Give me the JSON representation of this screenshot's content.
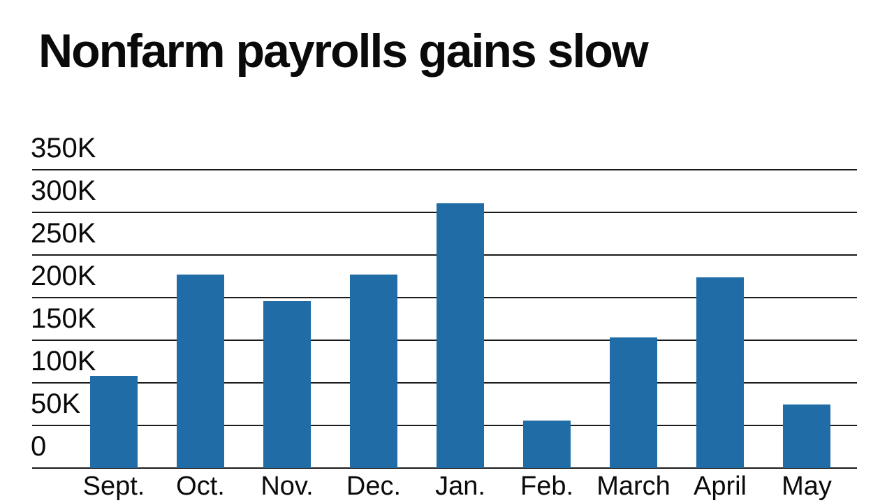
{
  "chart_data": {
    "type": "bar",
    "title": "Nonfarm payrolls gains slow",
    "categories": [
      "Sept.",
      "Oct.",
      "Nov.",
      "Dec.",
      "Jan.",
      "Feb.",
      "March",
      "April",
      "May"
    ],
    "values": [
      108,
      227,
      196,
      227,
      311,
      56,
      153,
      224,
      75
    ],
    "value_unit": "thousands of jobs",
    "ylim": [
      0,
      350
    ],
    "ytick_step": 50,
    "ytick_labels": [
      "0",
      "50K",
      "100K",
      "150K",
      "200K",
      "250K",
      "300K",
      "350K"
    ],
    "xlabel": "",
    "ylabel": "",
    "grid": true,
    "legend": "none",
    "bar_color": "#1F6CA6",
    "axis_color": "#1a1a1a",
    "text_color": "#0a0a0a",
    "background_color": "#ffffff"
  }
}
